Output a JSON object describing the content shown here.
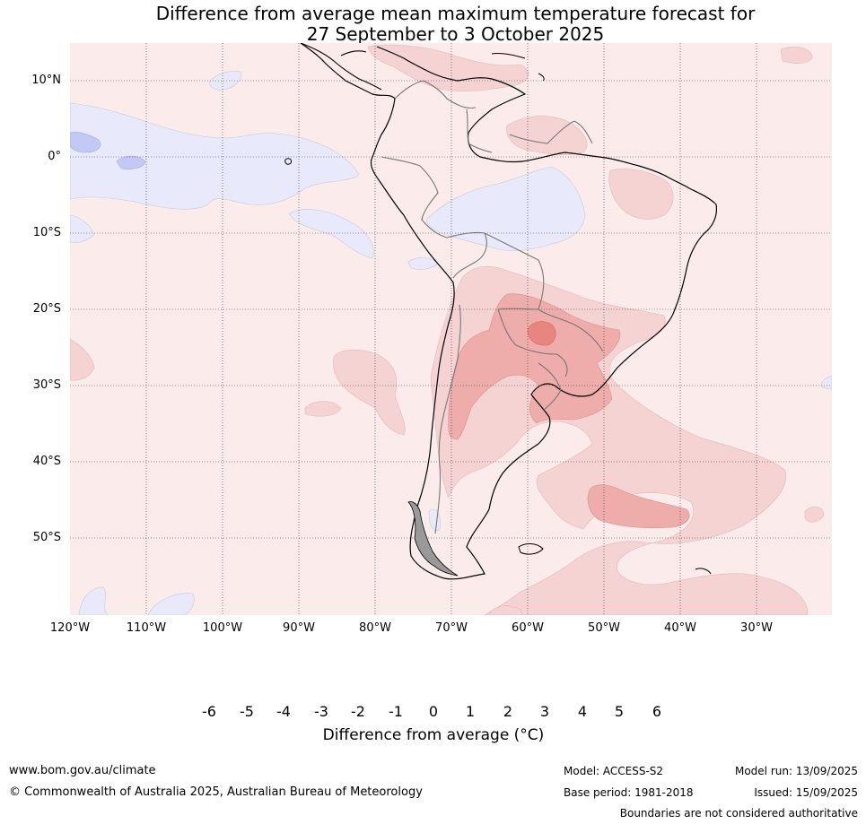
{
  "title": {
    "line1": "Difference from average mean maximum temperature forecast for",
    "line2": "27 September to 3 October 2025"
  },
  "map": {
    "lat_labels": [
      "10°N",
      "0°",
      "10°S",
      "20°S",
      "30°S",
      "40°S",
      "50°S"
    ],
    "lon_labels": [
      "120°W",
      "110°W",
      "100°W",
      "90°W",
      "80°W",
      "70°W",
      "60°W",
      "50°W",
      "40°W",
      "30°W"
    ],
    "lat_range": [
      -60,
      15
    ],
    "lon_range": [
      -120,
      -20
    ],
    "gridlines": true
  },
  "colorbar": {
    "ticks": [
      "-6",
      "-5",
      "-4",
      "-3",
      "-2",
      "-1",
      "0",
      "1",
      "2",
      "3",
      "4",
      "5",
      "6"
    ],
    "title": "Difference from average (°C)",
    "colors": [
      "#1f2f7a",
      "#2a3fb0",
      "#3050e0",
      "#5d73e6",
      "#8a9aee",
      "#c3c9f4",
      "#e8eafb",
      "#fbeceb",
      "#f5d3d2",
      "#eeacaa",
      "#e88580",
      "#d94c44",
      "#ab2a22",
      "#701d18"
    ]
  },
  "footer": {
    "website": "www.bom.gov.au/climate",
    "copyright": "© Commonwealth of Australia 2025, Australian Bureau of Meteorology",
    "model": "Model: ACCESS-S2",
    "base_period": "Base period: 1981-2018",
    "model_run": "Model run: 13/09/2025",
    "issued": "Issued: 15/09/2025",
    "disclaimer": "Boundaries are not considered authoritative"
  }
}
